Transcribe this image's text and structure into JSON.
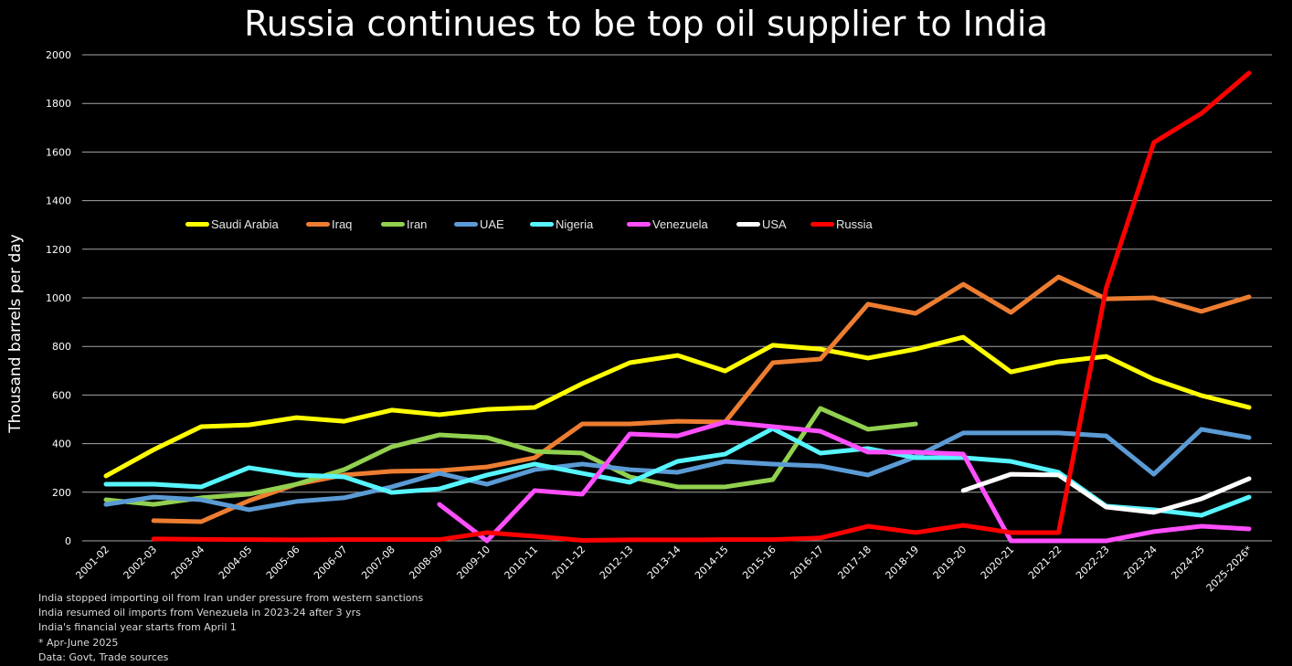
{
  "chart_data": {
    "type": "line",
    "title": "Russia continues to be top oil supplier to India",
    "xlabel": "",
    "ylabel": "Thousand barrels per day",
    "ylim": [
      0,
      2000
    ],
    "yticks": [
      0,
      200,
      400,
      600,
      800,
      1000,
      1200,
      1400,
      1600,
      1800,
      2000
    ],
    "grid": true,
    "legend_position": "upper-left inside plot",
    "categories": [
      "2001-02",
      "2002-03",
      "2003-04",
      "2004-05",
      "2005-06",
      "2006-07",
      "2007-08",
      "2008-09",
      "2009-10",
      "2010-11",
      "2011-12",
      "2012-13",
      "2013-14",
      "2014-15",
      "2015-16",
      "2016-17",
      "2017-18",
      "2018-19",
      "2019-20",
      "2020-21",
      "2021-22",
      "2022-23",
      "2023-24",
      "2024-25",
      "2025-2026*"
    ],
    "series": [
      {
        "name": "Saudi Arabia",
        "color": "#ffff00",
        "values": [
          267,
          375,
          470,
          477,
          507,
          492,
          538,
          519,
          541,
          549,
          647,
          733,
          763,
          699,
          805,
          789,
          752,
          789,
          838,
          695,
          737,
          759,
          665,
          598,
          549
        ]
      },
      {
        "name": "Iraq",
        "color": "#ed7d31",
        "values": [
          null,
          83,
          79,
          165,
          233,
          271,
          286,
          289,
          304,
          342,
          481,
          481,
          492,
          489,
          733,
          748,
          974,
          936,
          1056,
          940,
          1086,
          996,
          1000,
          944,
          1004
        ]
      },
      {
        "name": "Iran",
        "color": "#92d050",
        "values": [
          169,
          150,
          177,
          192,
          233,
          293,
          387,
          436,
          425,
          368,
          361,
          263,
          222,
          222,
          252,
          545,
          459,
          481,
          null,
          null,
          null,
          null,
          null,
          null,
          null
        ]
      },
      {
        "name": "UAE",
        "color": "#5b9bd5",
        "values": [
          150,
          180,
          169,
          128,
          162,
          177,
          222,
          278,
          233,
          293,
          316,
          293,
          282,
          327,
          316,
          308,
          271,
          346,
          444,
          444,
          444,
          432,
          274,
          459,
          425
        ]
      },
      {
        "name": "Nigeria",
        "color": "#57f5ff",
        "values": [
          233,
          233,
          222,
          301,
          271,
          263,
          199,
          214,
          271,
          316,
          278,
          241,
          327,
          357,
          462,
          361,
          380,
          342,
          342,
          327,
          282,
          143,
          128,
          105,
          180
        ]
      },
      {
        "name": "Venezuela",
        "color": "#ff4fff",
        "values": [
          null,
          null,
          null,
          null,
          null,
          null,
          null,
          150,
          0,
          207,
          192,
          440,
          432,
          489,
          470,
          451,
          365,
          365,
          357,
          0,
          0,
          0,
          38,
          60,
          49
        ]
      },
      {
        "name": "USA",
        "color": "#ffffff",
        "values": [
          null,
          null,
          null,
          null,
          null,
          null,
          null,
          null,
          null,
          null,
          null,
          null,
          null,
          null,
          null,
          null,
          null,
          null,
          207,
          274,
          271,
          139,
          117,
          173,
          256
        ]
      },
      {
        "name": "Russia",
        "color": "#ff0000",
        "values": [
          null,
          8,
          6,
          5,
          4,
          5,
          5,
          5,
          34,
          19,
          2,
          4,
          4,
          5,
          5,
          12,
          60,
          34,
          64,
          34,
          34,
          1040,
          1639,
          1759,
          1925
        ]
      }
    ]
  },
  "notes": [
    "India stopped importing oil from Iran under pressure from western sanctions",
    "India resumed oil imports from Venezuela in 2023-24 after 3 yrs",
    "India's financial year starts from April 1",
    "* Apr-June 2025",
    "Data: Govt, Trade sources"
  ]
}
